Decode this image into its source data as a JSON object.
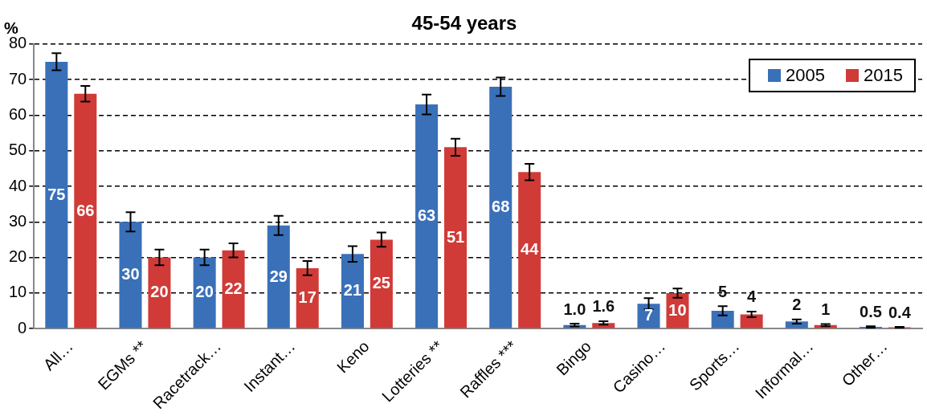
{
  "chart_data": {
    "type": "bar",
    "title": "45-54 years",
    "ylabel": "%",
    "categories": [
      "All…",
      "EGMs **",
      "Racetrack…",
      "Instant…",
      "Keno",
      "Lotteries **",
      "Raffles ***",
      "Bingo",
      "Casino…",
      "Sports…",
      "Informal…",
      "Other…"
    ],
    "series": [
      {
        "name": "2005",
        "color": "#3a70b8",
        "values": [
          75,
          30,
          20,
          29,
          21,
          63,
          68,
          1.0,
          7,
          5,
          2,
          0.5
        ],
        "value_labels": [
          "75",
          "30",
          "20",
          "29",
          "21",
          "63",
          "68",
          "1.0",
          "7",
          "5",
          "2",
          "0.5"
        ],
        "errors": [
          2.4,
          2.7,
          2.2,
          2.7,
          2.2,
          2.8,
          2.6,
          0.4,
          1.6,
          1.3,
          0.6,
          0.2
        ]
      },
      {
        "name": "2015",
        "color": "#d03b38",
        "values": [
          66,
          20,
          22,
          17,
          25,
          51,
          44,
          1.6,
          10,
          4,
          1,
          0.4
        ],
        "value_labels": [
          "66",
          "20",
          "22",
          "17",
          "25",
          "51",
          "44",
          "1.6",
          "10",
          "4",
          "1",
          "0.4"
        ],
        "errors": [
          2.2,
          2.2,
          2,
          2,
          2,
          2.4,
          2.3,
          0.5,
          1.3,
          0.8,
          0.3,
          0.1
        ]
      }
    ],
    "ylim": [
      0,
      80
    ],
    "yticks": [
      0,
      10,
      20,
      30,
      40,
      50,
      60,
      70,
      80
    ],
    "grid": "y",
    "legend": "top right"
  }
}
